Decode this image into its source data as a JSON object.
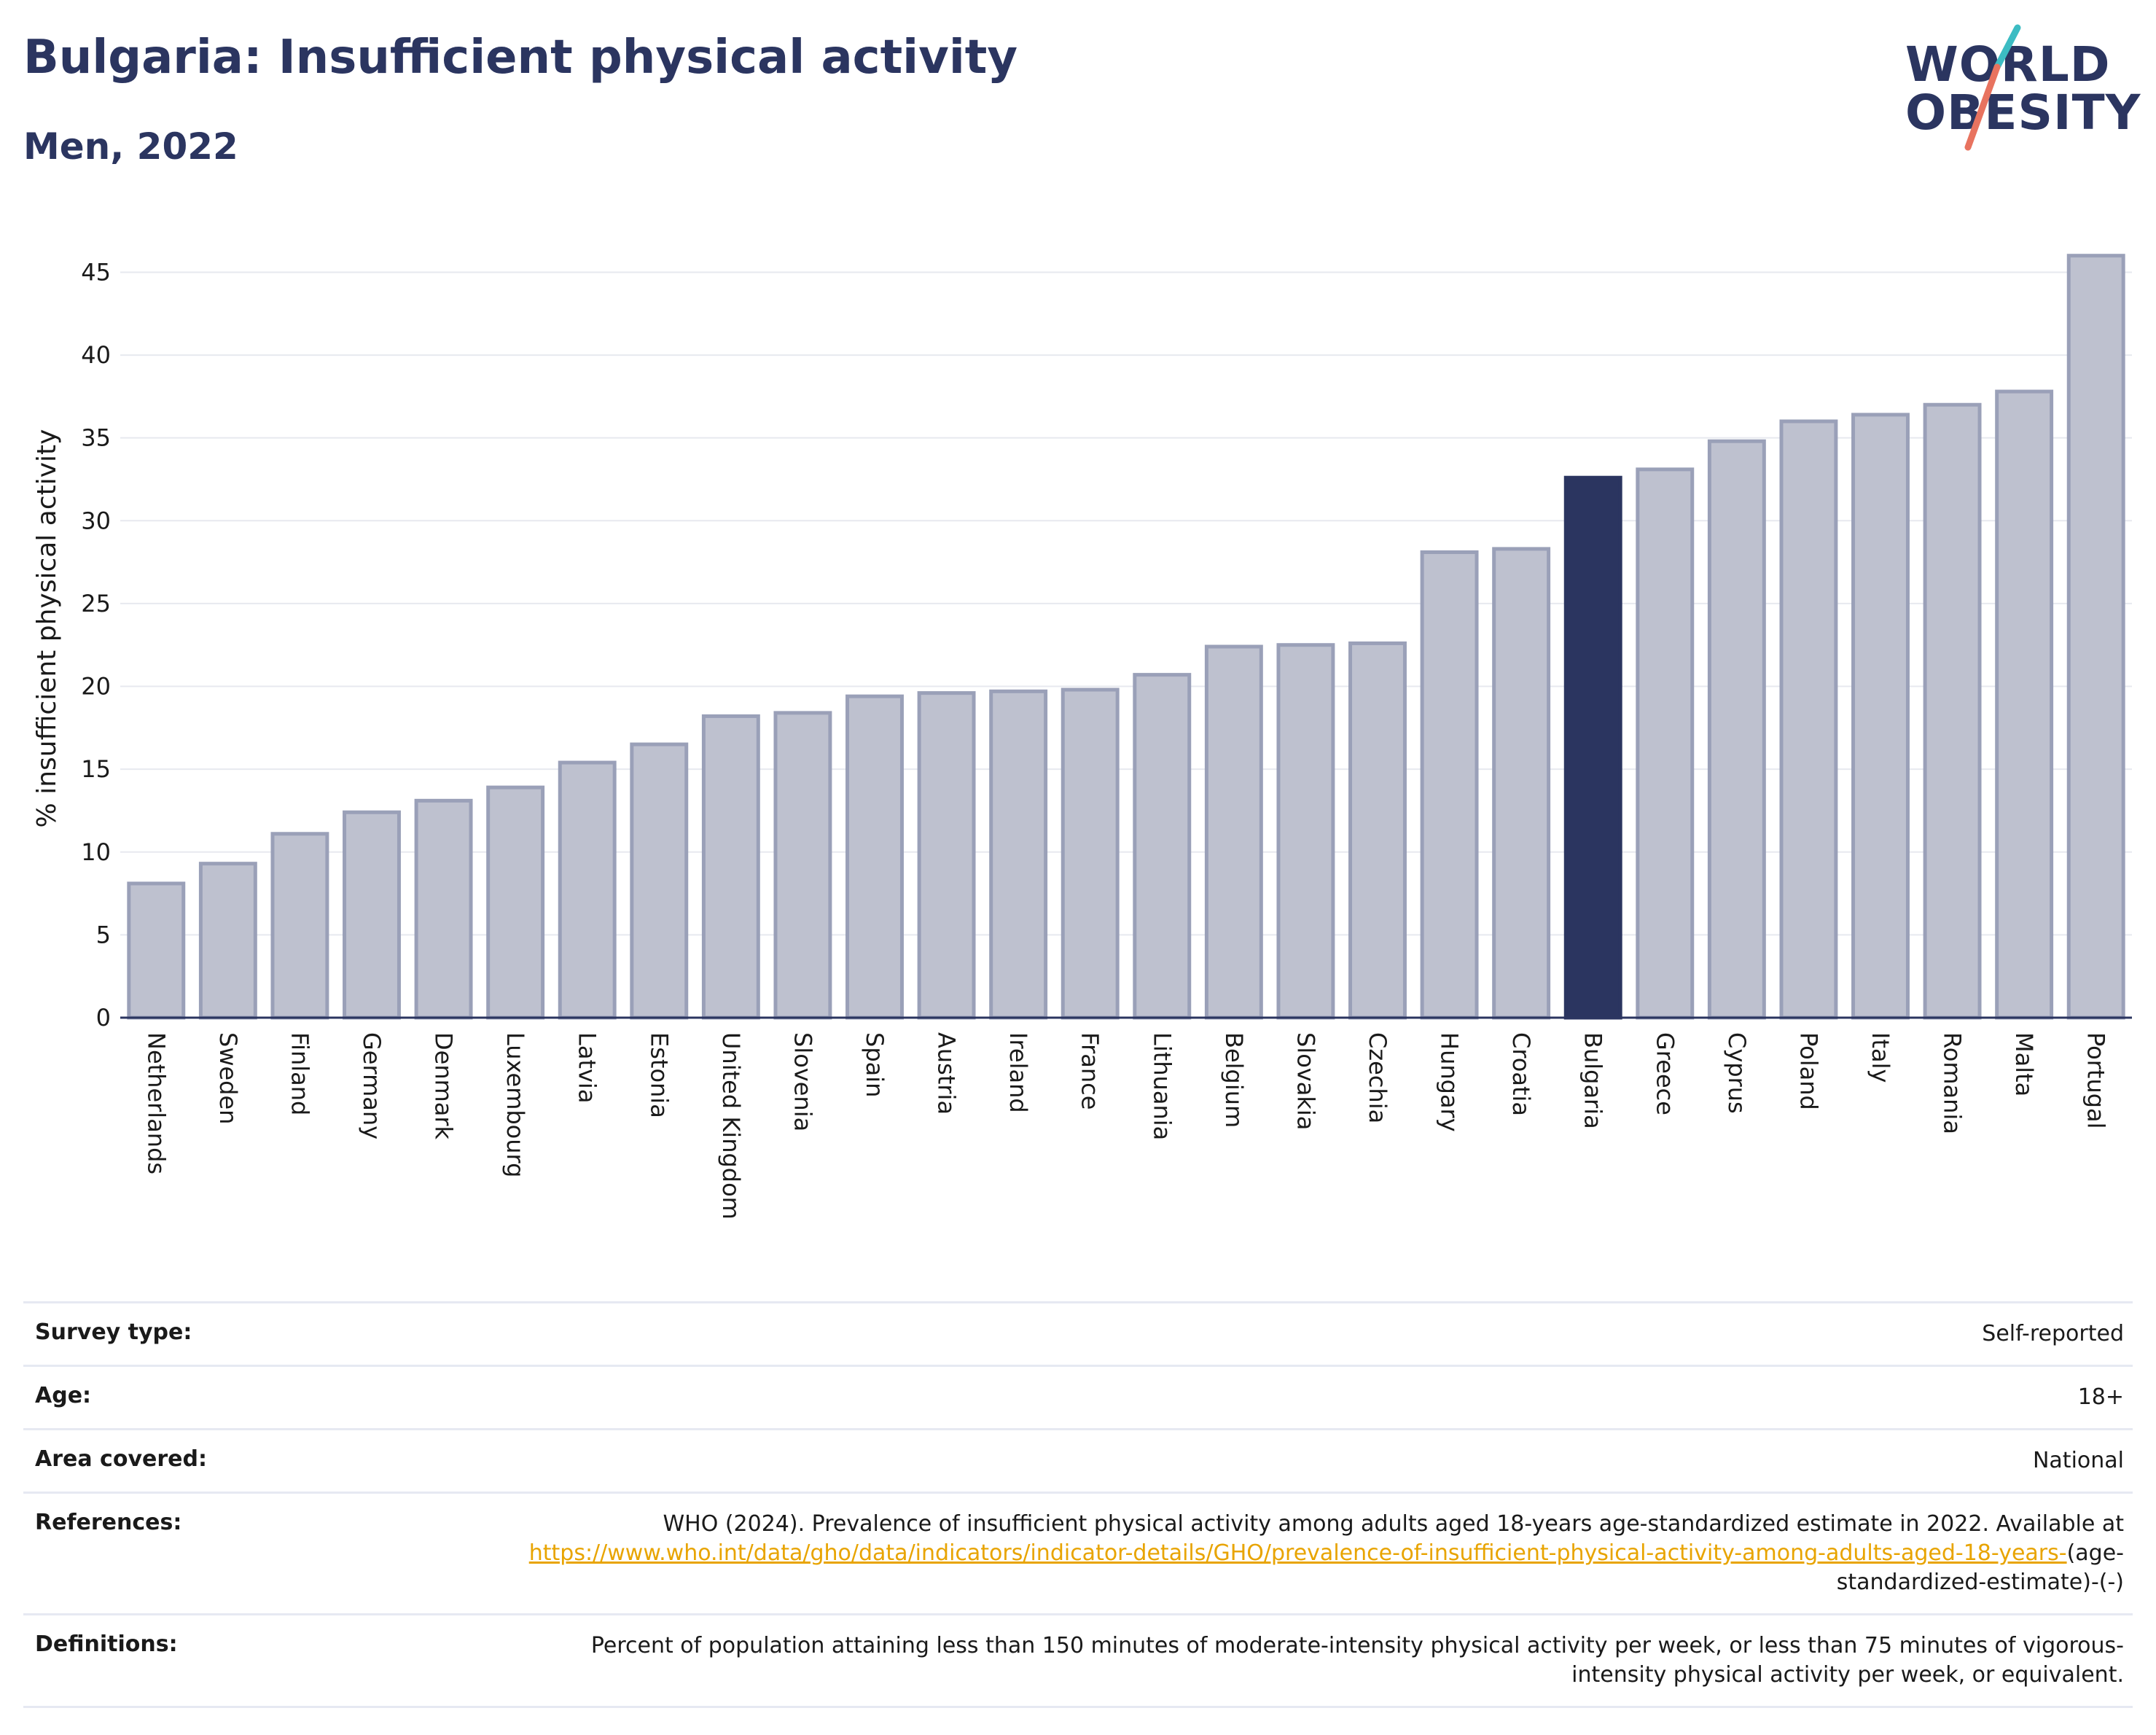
{
  "header": {
    "title": "Bulgaria: Insufficient physical activity",
    "subtitle": "Men, 2022"
  },
  "logo": {
    "line1": "WORLD",
    "line2": "OBESITY",
    "accent_colors": [
      "#3cbcc3",
      "#e8735f"
    ]
  },
  "colors": {
    "bar_default": "#bec1cf",
    "bar_default_edge": "#9aa0b8",
    "bar_highlight": "#2b3560",
    "link": "#e8a400"
  },
  "chart_data": {
    "type": "bar",
    "ylabel": "% insufficient physical activity",
    "xlabel": "",
    "ylim": [
      0,
      47
    ],
    "yticks": [
      0,
      5,
      10,
      15,
      20,
      25,
      30,
      35,
      40,
      45
    ],
    "grid": true,
    "highlight": "Bulgaria",
    "categories": [
      "Netherlands",
      "Sweden",
      "Finland",
      "Germany",
      "Denmark",
      "Luxembourg",
      "Latvia",
      "Estonia",
      "United Kingdom",
      "Slovenia",
      "Spain",
      "Austria",
      "Ireland",
      "France",
      "Lithuania",
      "Belgium",
      "Slovakia",
      "Czechia",
      "Hungary",
      "Croatia",
      "Bulgaria",
      "Greece",
      "Cyprus",
      "Poland",
      "Italy",
      "Romania",
      "Malta",
      "Portugal"
    ],
    "values": [
      8.1,
      9.3,
      11.1,
      12.4,
      13.1,
      13.9,
      15.4,
      16.5,
      18.2,
      18.4,
      19.4,
      19.6,
      19.7,
      19.8,
      20.7,
      22.4,
      22.5,
      22.6,
      28.1,
      28.3,
      32.6,
      33.1,
      34.8,
      36.0,
      36.4,
      37.0,
      37.8,
      46.0
    ]
  },
  "details": {
    "survey_type_label": "Survey type:",
    "survey_type_value": "Self-reported",
    "age_label": "Age:",
    "age_value": "18+",
    "area_label": "Area covered:",
    "area_value": "National",
    "references_label": "References:",
    "references_text": "WHO (2024). Prevalence of insufficient physical activity among adults aged 18-years age-standardized estimate in 2022. Available at",
    "references_link": "https://www.who.int/data/gho/data/indicators/indicator-details/GHO/prevalence-of-insufficient-physical-activity-among-adults-aged-18-years-",
    "references_suffix": "(age-standardized-estimate)-(-)",
    "definitions_label": "Definitions:",
    "definitions_value": "Percent of population attaining less than 150 minutes of moderate-intensity physical activity per week, or less than 75 minutes of vigorous-intensity physical activity per week, or equivalent."
  }
}
